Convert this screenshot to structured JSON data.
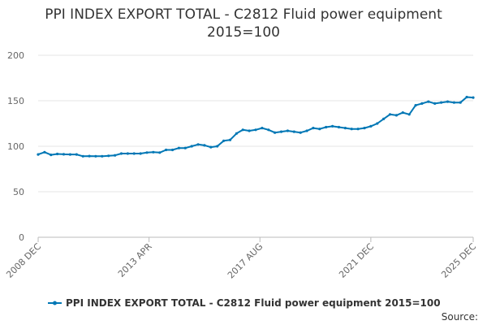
{
  "chart_data": {
    "type": "line",
    "title": "PPI INDEX EXPORT TOTAL - C2812 Fluid power equipment",
    "subtitle": "2015=100",
    "xlabel": "",
    "ylabel": "",
    "ylim": [
      0,
      200
    ],
    "y_ticks": [
      "0",
      "50",
      "100",
      "150",
      "200"
    ],
    "x_ticks": [
      "2008 DEC",
      "2013 APR",
      "2017 AUG",
      "2021 DEC",
      "2025 DEC"
    ],
    "x_range": [
      "2008-12",
      "2025-12"
    ],
    "grid": "horizontal",
    "legend_position": "bottom",
    "source_label": "Source:",
    "series": [
      {
        "name": "PPI INDEX EXPORT TOTAL - C2812 Fluid power equipment 2015=100",
        "color": "#0077b5",
        "points": [
          [
            "2008-12",
            91.0
          ],
          [
            "2009-03",
            93.5
          ],
          [
            "2009-06",
            90.5
          ],
          [
            "2009-09",
            91.5
          ],
          [
            "2009-12",
            91.2
          ],
          [
            "2010-03",
            91.0
          ],
          [
            "2010-06",
            91.0
          ],
          [
            "2010-09",
            89.0
          ],
          [
            "2010-12",
            89.2
          ],
          [
            "2011-03",
            89.0
          ],
          [
            "2011-06",
            89.0
          ],
          [
            "2011-09",
            89.5
          ],
          [
            "2011-12",
            90.0
          ],
          [
            "2012-03",
            92.0
          ],
          [
            "2012-06",
            92.0
          ],
          [
            "2012-09",
            92.0
          ],
          [
            "2012-12",
            92.0
          ],
          [
            "2013-03",
            93.0
          ],
          [
            "2013-06",
            93.5
          ],
          [
            "2013-09",
            93.0
          ],
          [
            "2013-12",
            96.0
          ],
          [
            "2014-03",
            96.0
          ],
          [
            "2014-06",
            98.0
          ],
          [
            "2014-09",
            98.0
          ],
          [
            "2014-12",
            100.0
          ],
          [
            "2015-03",
            102.0
          ],
          [
            "2015-06",
            101.0
          ],
          [
            "2015-09",
            99.0
          ],
          [
            "2015-12",
            100.0
          ],
          [
            "2016-03",
            106.0
          ],
          [
            "2016-06",
            107.0
          ],
          [
            "2016-09",
            114.0
          ],
          [
            "2016-12",
            118.0
          ],
          [
            "2017-03",
            117.0
          ],
          [
            "2017-06",
            118.0
          ],
          [
            "2017-09",
            120.0
          ],
          [
            "2017-12",
            118.0
          ],
          [
            "2018-03",
            115.0
          ],
          [
            "2018-06",
            116.0
          ],
          [
            "2018-09",
            117.0
          ],
          [
            "2018-12",
            116.0
          ],
          [
            "2019-03",
            115.0
          ],
          [
            "2019-06",
            117.0
          ],
          [
            "2019-09",
            120.0
          ],
          [
            "2019-12",
            119.0
          ],
          [
            "2020-03",
            121.0
          ],
          [
            "2020-06",
            122.0
          ],
          [
            "2020-09",
            121.0
          ],
          [
            "2020-12",
            120.0
          ],
          [
            "2021-03",
            119.0
          ],
          [
            "2021-06",
            119.0
          ],
          [
            "2021-09",
            120.0
          ],
          [
            "2021-12",
            122.0
          ],
          [
            "2022-03",
            125.0
          ],
          [
            "2022-06",
            130.0
          ],
          [
            "2022-09",
            135.0
          ],
          [
            "2022-12",
            134.0
          ],
          [
            "2023-03",
            137.0
          ],
          [
            "2023-06",
            135.0
          ],
          [
            "2023-09",
            145.0
          ],
          [
            "2023-12",
            147.0
          ],
          [
            "2024-03",
            149.0
          ],
          [
            "2024-06",
            147.0
          ],
          [
            "2024-09",
            148.0
          ],
          [
            "2024-12",
            149.0
          ],
          [
            "2025-03",
            148.0
          ],
          [
            "2025-06",
            148.0
          ],
          [
            "2025-09",
            154.0
          ],
          [
            "2025-12",
            153.5
          ]
        ]
      }
    ]
  }
}
